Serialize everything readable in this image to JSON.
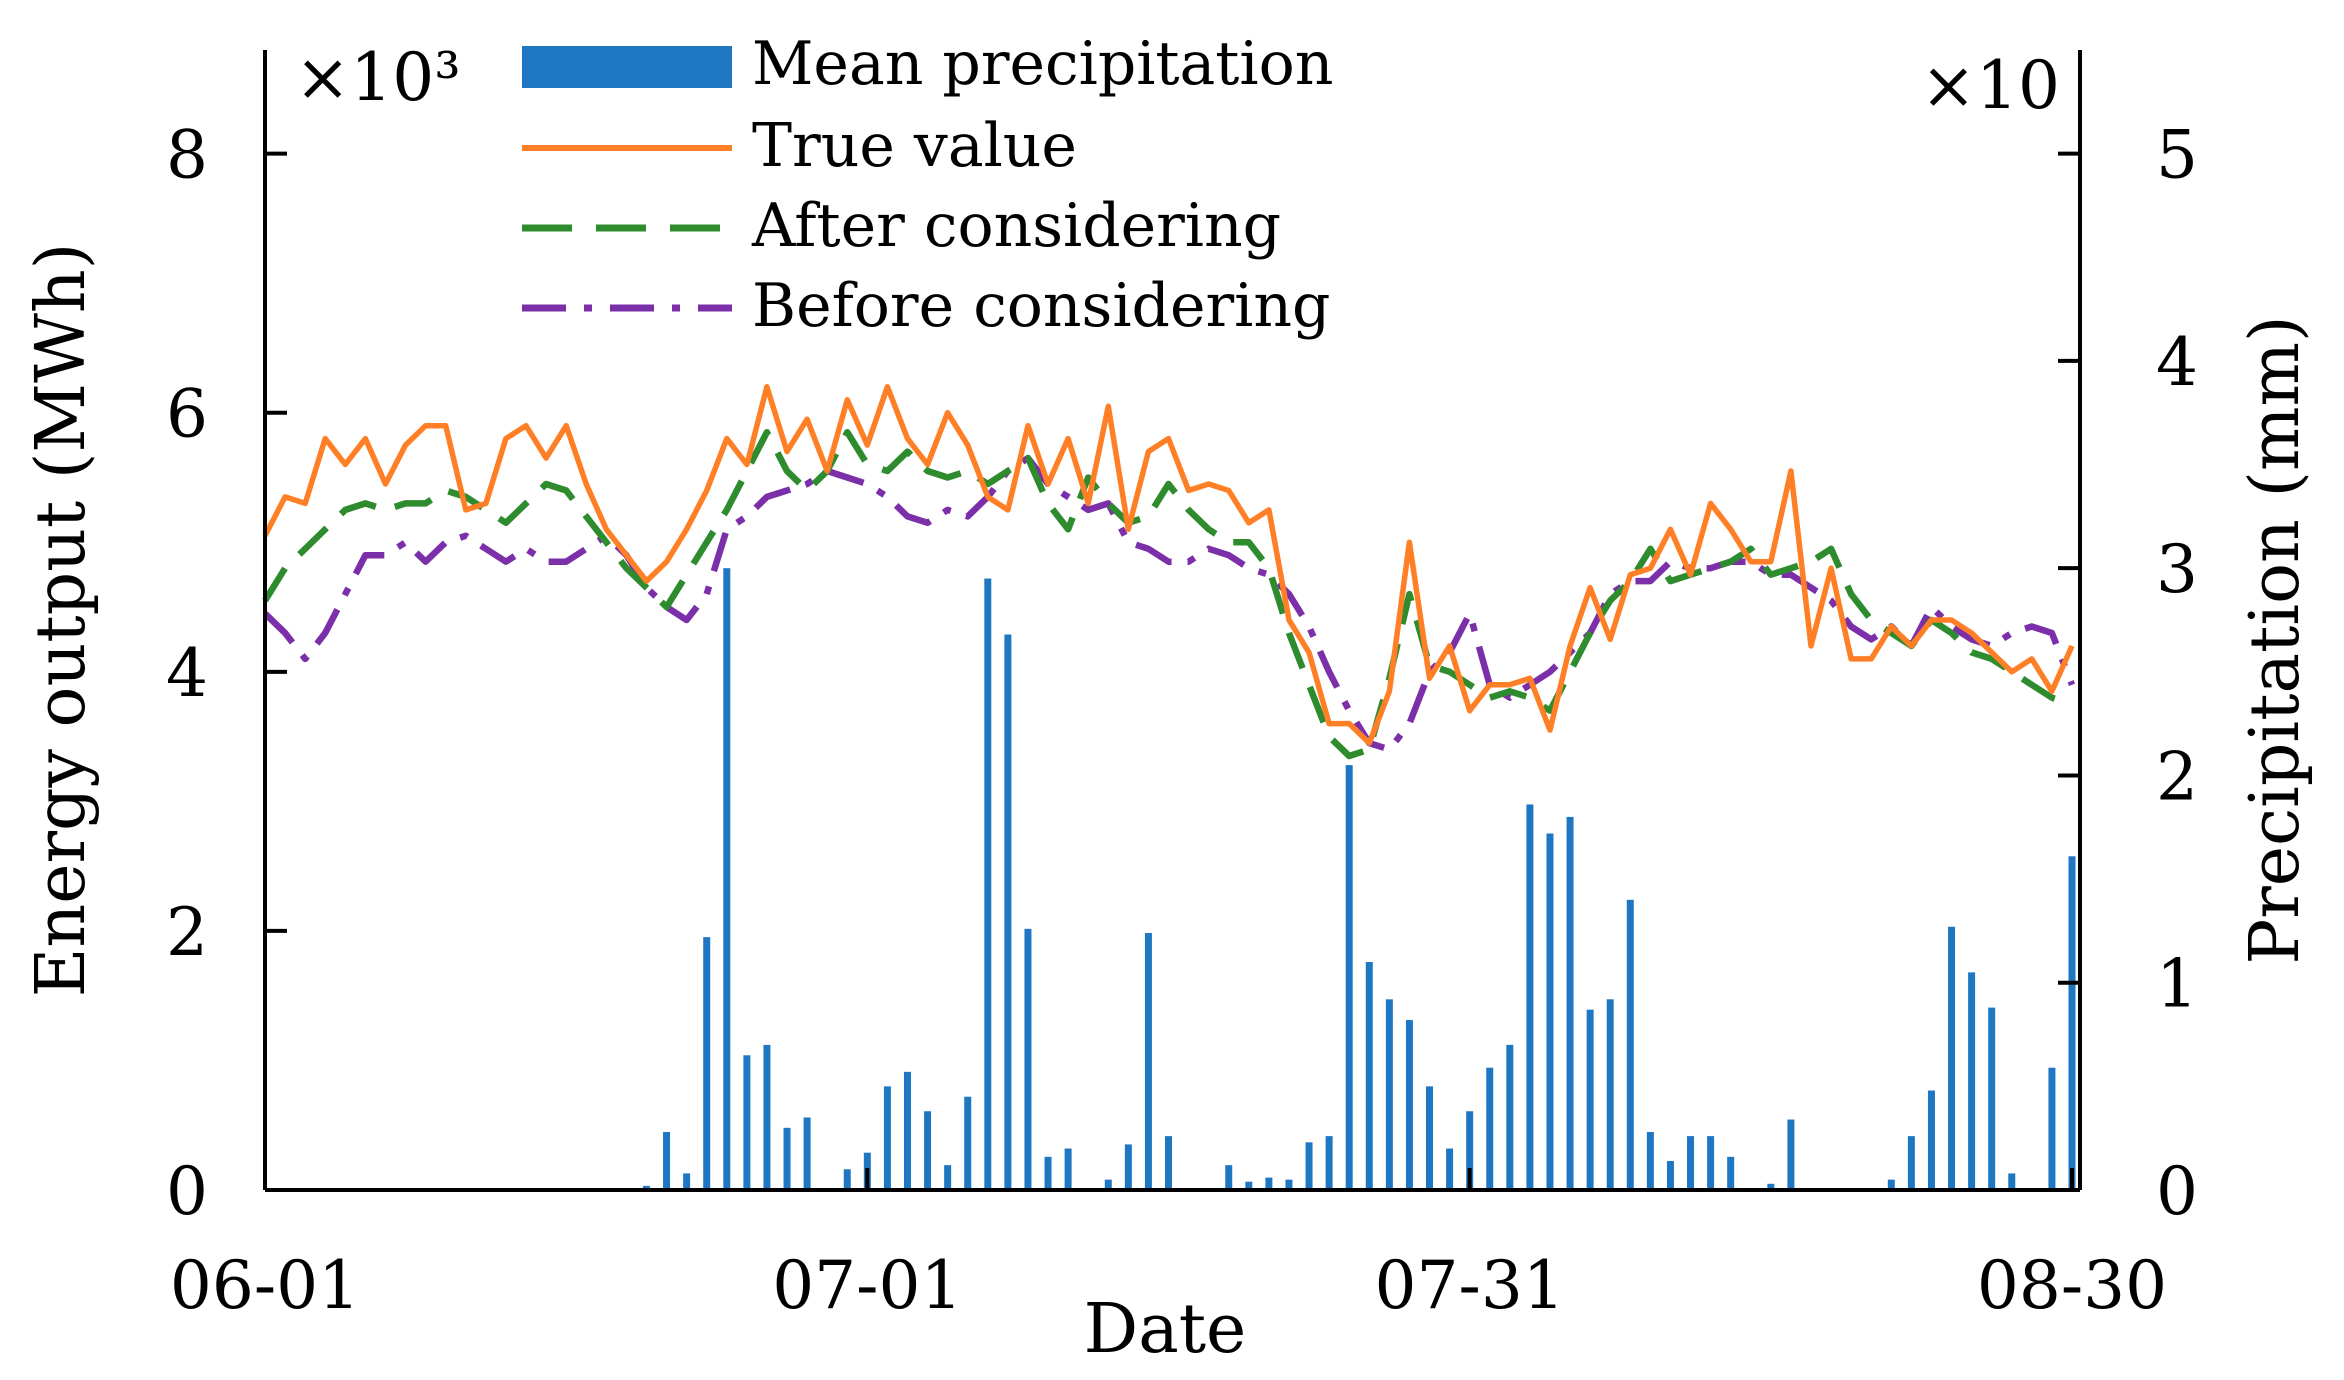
{
  "chart_data": {
    "type": "bar+line",
    "xlabel": "Date",
    "ylabel_left": "Energy output (MWh)",
    "ylabel_right": "Precipitation (mm)",
    "left_multiplier": "×10³",
    "right_multiplier": "×10",
    "xlim": [
      0,
      90
    ],
    "ylim_left": [
      0,
      8.8
    ],
    "ylim_right": [
      0,
      5.5
    ],
    "x_ticks": [
      {
        "pos": 0,
        "label": "06-01"
      },
      {
        "pos": 30,
        "label": "07-01"
      },
      {
        "pos": 60,
        "label": "07-31"
      },
      {
        "pos": 90,
        "label": "08-30"
      }
    ],
    "left_ticks": [
      {
        "value": 0,
        "label": "0"
      },
      {
        "value": 2,
        "label": "2"
      },
      {
        "value": 4,
        "label": "4"
      },
      {
        "value": 6,
        "label": "6"
      },
      {
        "value": 8,
        "label": "8"
      }
    ],
    "right_ticks": [
      {
        "value": 0,
        "label": "0"
      },
      {
        "value": 1,
        "label": "1"
      },
      {
        "value": 2,
        "label": "2"
      },
      {
        "value": 3,
        "label": "3"
      },
      {
        "value": 4,
        "label": "4"
      },
      {
        "value": 5,
        "label": "5"
      }
    ],
    "colors": {
      "bar": "#1f77c4",
      "true": "#ff7f27",
      "after": "#2e8b2e",
      "before": "#7b2fa8"
    },
    "legend": [
      "Mean precipitation",
      "True value",
      "After considering",
      "Before considering"
    ],
    "bars": {
      "name": "Mean precipitation",
      "axis": "right",
      "x": [
        19,
        20,
        21,
        22,
        23,
        24,
        25,
        26,
        27,
        28,
        29,
        30,
        31,
        32,
        33,
        34,
        35,
        36,
        37,
        38,
        39,
        40,
        41,
        42,
        43,
        44,
        45,
        46,
        47,
        48,
        49,
        50,
        51,
        52,
        53,
        54,
        55,
        56,
        57,
        58,
        59,
        60,
        61,
        62,
        63,
        64,
        65,
        66,
        67,
        68,
        69,
        70,
        71,
        72,
        73,
        74,
        75,
        76,
        77,
        78,
        79,
        80,
        81,
        82,
        83,
        84,
        85,
        86,
        87,
        88,
        89,
        90
      ],
      "values": [
        0.02,
        0.28,
        0.08,
        1.22,
        3.0,
        0.65,
        0.7,
        0.3,
        0.35,
        0,
        0.1,
        0.18,
        0.5,
        0.57,
        0.38,
        0.12,
        0.45,
        2.95,
        2.68,
        1.26,
        0.16,
        0.2,
        0,
        0.05,
        0.22,
        1.24,
        0.26,
        0,
        0,
        0.12,
        0.04,
        0.06,
        0.05,
        0.23,
        0.26,
        2.05,
        1.1,
        0.92,
        0.82,
        0.5,
        0.2,
        0.38,
        0.59,
        0.7,
        1.86,
        1.72,
        1.8,
        0.87,
        0.92,
        1.4,
        0.28,
        0.14,
        0.26,
        0.26,
        0.16,
        0,
        0.03,
        0.34,
        0,
        0,
        0,
        0,
        0.05,
        0.26,
        0.48,
        1.27,
        1.05,
        0.88,
        0.08,
        0,
        0.59,
        1.61
      ]
    },
    "series": [
      {
        "name": "True value",
        "axis": "left",
        "x": [
          0,
          1,
          2,
          3,
          4,
          5,
          6,
          7,
          8,
          9,
          10,
          11,
          12,
          13,
          14,
          15,
          16,
          17,
          18,
          19,
          20,
          21,
          22,
          23,
          24,
          25,
          26,
          27,
          28,
          29,
          30,
          31,
          32,
          33,
          34,
          35,
          36,
          37,
          38,
          39,
          40,
          41,
          42,
          43,
          44,
          45,
          46,
          47,
          48,
          49,
          50,
          51,
          52,
          53,
          54,
          55,
          56,
          57,
          58,
          59,
          60,
          61,
          62,
          63,
          64,
          65,
          66,
          67,
          68,
          69,
          70,
          71,
          72,
          73,
          74,
          75,
          76,
          77,
          78,
          79,
          80,
          81,
          82,
          83,
          84,
          85,
          86,
          87,
          88,
          89,
          90
        ],
        "values": [
          5.05,
          5.35,
          5.3,
          5.8,
          5.6,
          5.8,
          5.45,
          5.75,
          5.9,
          5.9,
          5.25,
          5.3,
          5.8,
          5.9,
          5.65,
          5.9,
          5.45,
          5.1,
          4.9,
          4.7,
          4.85,
          5.1,
          5.4,
          5.8,
          5.6,
          6.2,
          5.7,
          5.95,
          5.55,
          6.1,
          5.75,
          6.2,
          5.8,
          5.6,
          6.0,
          5.75,
          5.35,
          5.25,
          5.9,
          5.45,
          5.8,
          5.3,
          6.05,
          5.1,
          5.7,
          5.8,
          5.4,
          5.45,
          5.4,
          5.15,
          5.25,
          4.4,
          4.15,
          3.6,
          3.6,
          3.45,
          3.85,
          5.0,
          3.95,
          4.2,
          3.7,
          3.9,
          3.9,
          3.95,
          3.55,
          4.2,
          4.65,
          4.25,
          4.75,
          4.8,
          5.1,
          4.75,
          5.3,
          5.1,
          4.85,
          4.85,
          5.55,
          4.2,
          4.8,
          4.1,
          4.1,
          4.35,
          4.2,
          4.4,
          4.4,
          4.3,
          4.15,
          4.0,
          4.1,
          3.85,
          4.2
        ]
      },
      {
        "name": "After considering",
        "axis": "left",
        "x": [
          0,
          1,
          2,
          3,
          4,
          5,
          6,
          7,
          8,
          9,
          10,
          11,
          12,
          13,
          14,
          15,
          16,
          17,
          18,
          19,
          20,
          21,
          22,
          23,
          24,
          25,
          26,
          27,
          28,
          29,
          30,
          31,
          32,
          33,
          34,
          35,
          36,
          37,
          38,
          39,
          40,
          41,
          42,
          43,
          44,
          45,
          46,
          47,
          48,
          49,
          50,
          51,
          52,
          53,
          54,
          55,
          56,
          57,
          58,
          59,
          60,
          61,
          62,
          63,
          64,
          65,
          66,
          67,
          68,
          69,
          70,
          71,
          72,
          73,
          74,
          75,
          76,
          77,
          78,
          79,
          80,
          81,
          82,
          83,
          84,
          85,
          86,
          87,
          88,
          89,
          90
        ],
        "values": [
          4.55,
          4.8,
          4.95,
          5.1,
          5.25,
          5.3,
          5.25,
          5.3,
          5.3,
          5.4,
          5.35,
          5.25,
          5.15,
          5.3,
          5.45,
          5.4,
          5.2,
          5.0,
          4.8,
          4.65,
          4.5,
          4.75,
          5.0,
          5.25,
          5.55,
          5.85,
          5.55,
          5.4,
          5.55,
          5.85,
          5.6,
          5.55,
          5.7,
          5.55,
          5.5,
          5.55,
          5.45,
          5.55,
          5.65,
          5.3,
          5.1,
          5.5,
          5.3,
          5.15,
          5.2,
          5.45,
          5.25,
          5.1,
          5.0,
          5.0,
          4.8,
          4.3,
          3.9,
          3.5,
          3.35,
          3.4,
          3.95,
          4.6,
          4.05,
          4.0,
          3.9,
          3.8,
          3.85,
          3.8,
          3.7,
          4.0,
          4.3,
          4.55,
          4.7,
          4.95,
          4.7,
          4.75,
          4.8,
          4.85,
          4.95,
          4.75,
          4.8,
          4.85,
          4.95,
          4.6,
          4.4,
          4.3,
          4.2,
          4.4,
          4.3,
          4.15,
          4.1,
          4.0,
          3.9,
          3.8,
          3.75
        ]
      },
      {
        "name": "Before considering",
        "axis": "left",
        "x": [
          0,
          1,
          2,
          3,
          4,
          5,
          6,
          7,
          8,
          9,
          10,
          11,
          12,
          13,
          14,
          15,
          16,
          17,
          18,
          19,
          20,
          21,
          22,
          23,
          24,
          25,
          26,
          27,
          28,
          29,
          30,
          31,
          32,
          33,
          34,
          35,
          36,
          37,
          38,
          39,
          40,
          41,
          42,
          43,
          44,
          45,
          46,
          47,
          48,
          49,
          50,
          51,
          52,
          53,
          54,
          55,
          56,
          57,
          58,
          59,
          60,
          61,
          62,
          63,
          64,
          65,
          66,
          67,
          68,
          69,
          70,
          71,
          72,
          73,
          74,
          75,
          76,
          77,
          78,
          79,
          80,
          81,
          82,
          83,
          84,
          85,
          86,
          87,
          88,
          89,
          90
        ],
        "values": [
          4.45,
          4.3,
          4.1,
          4.3,
          4.6,
          4.9,
          4.9,
          5.0,
          4.85,
          5.0,
          5.05,
          4.95,
          4.85,
          4.95,
          4.85,
          4.85,
          4.95,
          5.05,
          4.9,
          4.65,
          4.5,
          4.4,
          4.6,
          5.1,
          5.2,
          5.35,
          5.4,
          5.45,
          5.55,
          5.5,
          5.45,
          5.35,
          5.2,
          5.15,
          5.25,
          5.2,
          5.35,
          5.55,
          5.65,
          5.45,
          5.35,
          5.25,
          5.3,
          5.0,
          4.95,
          4.85,
          4.85,
          4.95,
          4.9,
          4.8,
          4.75,
          4.6,
          4.35,
          4.0,
          3.7,
          3.45,
          3.4,
          3.6,
          4.0,
          4.15,
          4.45,
          3.9,
          3.8,
          3.9,
          4.0,
          4.15,
          4.3,
          4.6,
          4.7,
          4.7,
          4.85,
          4.8,
          4.8,
          4.85,
          4.85,
          4.75,
          4.75,
          4.65,
          4.55,
          4.35,
          4.25,
          4.35,
          4.2,
          4.5,
          4.35,
          4.25,
          4.2,
          4.3,
          4.35,
          4.3,
          3.9
        ]
      }
    ]
  }
}
